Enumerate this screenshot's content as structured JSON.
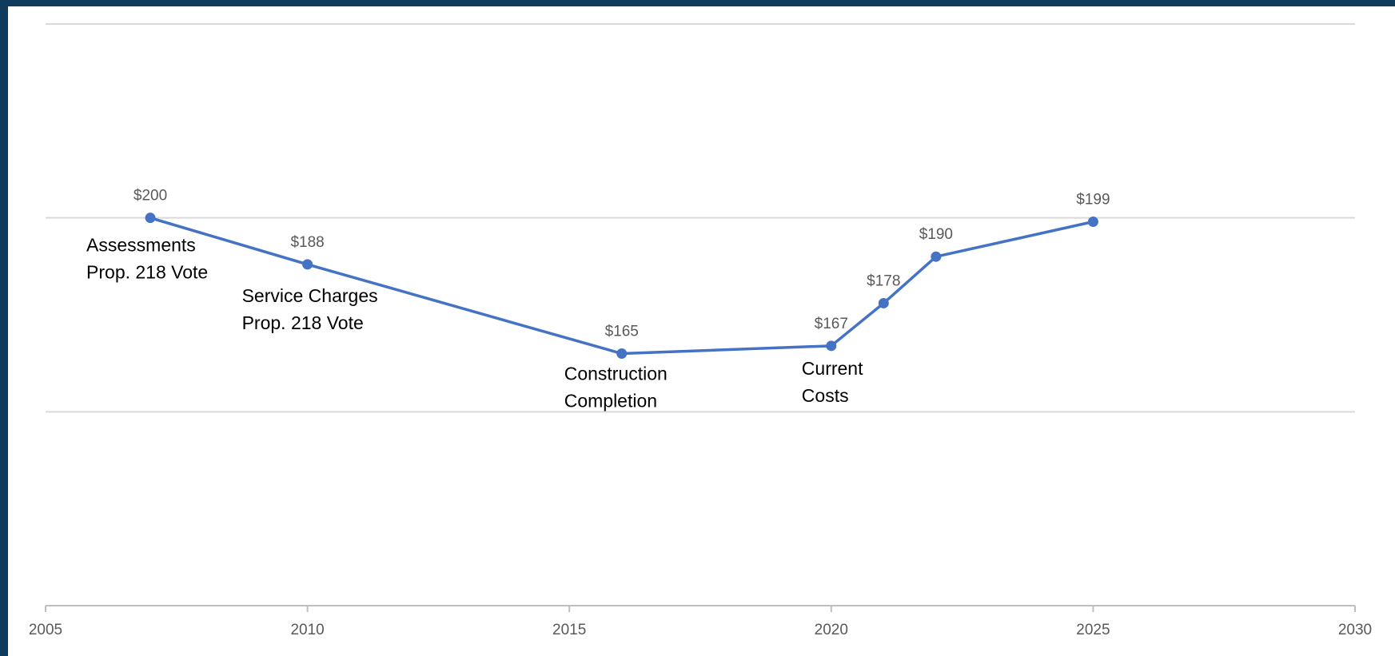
{
  "chart_data": {
    "type": "scatter",
    "title": "",
    "xlabel": "",
    "ylabel": "",
    "xlim": [
      2005,
      2030
    ],
    "ylim": [
      100,
      250
    ],
    "x_ticks": [
      "2005",
      "2010",
      "2015",
      "2020",
      "2025",
      "2030"
    ],
    "grid": true,
    "series": [
      {
        "x": [
          2007,
          2010,
          2016,
          2020,
          2021,
          2022,
          2025
        ],
        "y": [
          200,
          188,
          165,
          167,
          178,
          190,
          199
        ],
        "labels": [
          "$200",
          "$188",
          "$165",
          "$167",
          "$178",
          "$190",
          "$199"
        ],
        "color": "#4472c4"
      }
    ],
    "annotations": [
      {
        "lines": [
          "Assessments",
          "Prop. 218 Vote"
        ],
        "x": 2007
      },
      {
        "lines": [
          "Service Charges",
          "Prop. 218 Vote"
        ],
        "x": 2010
      },
      {
        "lines": [
          "Construction",
          "Completion"
        ],
        "x": 2016
      },
      {
        "lines": [
          "Current",
          "Costs"
        ],
        "x": 2020
      }
    ]
  },
  "colors": {
    "line": "#4472c4",
    "gridline": "#d9d9d9",
    "axis": "#bfbfbf",
    "border": "#0f3b5c"
  }
}
